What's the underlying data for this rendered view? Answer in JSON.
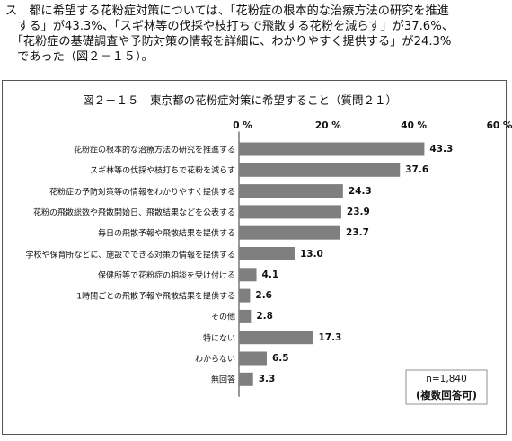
{
  "intro": {
    "lines": [
      "ス　都に希望する花粉症対策については、「花粉症の根本的な治療方法の研究を推進",
      "　する」が43.3%、「スギ林等の伐採や枝打ちで飛散する花粉を減らす」が37.6%、",
      "　「花粉症の基礎調査や予防対策の情報を詳細に、わかりやすく提供する」が24.3%",
      "　であった（図２－１５）。"
    ]
  },
  "chart_data": {
    "type": "bar",
    "orientation": "horizontal",
    "title": "図２－１５　東京都の花粉症対策に希望すること（質問２１）",
    "categories": [
      "花粉症の根本的な治療方法の研究を推進する",
      "スギ林等の伐採や枝打ちで花粉を減らす",
      "花粉症の予防対策等の情報をわかりやすく提供する",
      "花粉の飛散総数や飛散開始日、飛散結果などを公表する",
      "毎日の飛散予報や飛散結果を提供する",
      "学校や保育所などに、施設でできる対策の情報を提供する",
      "保健所等で花粉症の相談を受け付ける",
      "1時間ごとの飛散予報や飛散結果を提供する",
      "その他",
      "特にない",
      "わからない",
      "無回答"
    ],
    "values": [
      43.3,
      37.6,
      24.3,
      23.9,
      23.7,
      13.0,
      4.1,
      2.6,
      2.8,
      17.3,
      6.5,
      3.3
    ],
    "value_labels": [
      "43.3",
      "37.6",
      "24.3",
      "23.9",
      "23.7",
      "13.0",
      "4.1",
      "2.6",
      "2.8",
      "17.3",
      "6.5",
      "3.3"
    ],
    "xlim": [
      0,
      60
    ],
    "xticks": [
      "0 %",
      "20 %",
      "40 %",
      "60 %"
    ],
    "xtick_values": [
      0,
      20,
      40,
      60
    ],
    "grid": false,
    "bar_color": "#7f7f7f",
    "note": {
      "n": "n=1,840",
      "multi": "(複数回答可)"
    }
  }
}
